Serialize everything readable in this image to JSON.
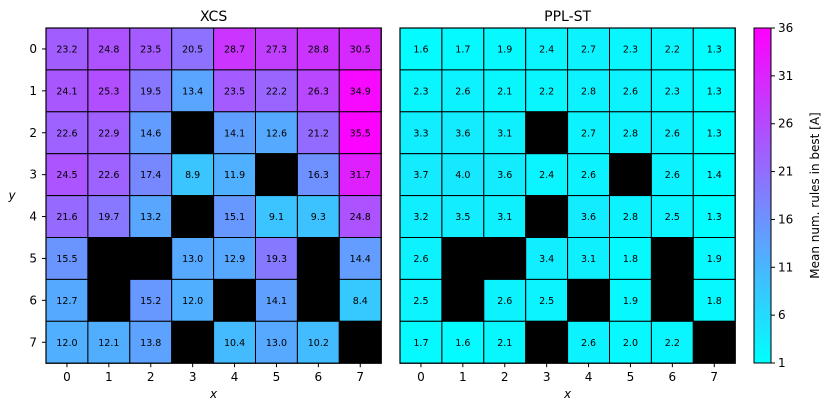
{
  "chart_data": [
    {
      "type": "heatmap",
      "title": "XCS",
      "xlabel": "x",
      "ylabel": "y",
      "x_ticks": [
        "0",
        "1",
        "2",
        "3",
        "4",
        "5",
        "6",
        "7"
      ],
      "y_ticks": [
        "0",
        "1",
        "2",
        "3",
        "4",
        "5",
        "6",
        "7"
      ],
      "blocked_color": "#000000",
      "values": [
        [
          23.2,
          24.8,
          23.5,
          20.5,
          28.7,
          27.3,
          28.8,
          30.5
        ],
        [
          24.1,
          25.3,
          19.5,
          13.4,
          23.5,
          22.2,
          26.3,
          34.9
        ],
        [
          22.6,
          22.9,
          14.6,
          null,
          14.1,
          12.6,
          21.2,
          35.5
        ],
        [
          24.5,
          22.6,
          17.4,
          8.9,
          11.9,
          null,
          16.3,
          31.7
        ],
        [
          21.6,
          19.7,
          13.2,
          null,
          15.1,
          9.1,
          9.3,
          24.8
        ],
        [
          15.5,
          null,
          null,
          13.0,
          12.9,
          19.3,
          null,
          14.4
        ],
        [
          12.7,
          null,
          15.2,
          12.0,
          null,
          14.1,
          null,
          8.4
        ],
        [
          12.0,
          12.1,
          13.8,
          null,
          10.4,
          13.0,
          10.2,
          null
        ]
      ]
    },
    {
      "type": "heatmap",
      "title": "PPL-ST",
      "xlabel": "x",
      "ylabel": "",
      "x_ticks": [
        "0",
        "1",
        "2",
        "3",
        "4",
        "5",
        "6",
        "7"
      ],
      "y_ticks": [],
      "blocked_color": "#000000",
      "values": [
        [
          1.6,
          1.7,
          1.9,
          2.4,
          2.7,
          2.3,
          2.2,
          1.3
        ],
        [
          2.3,
          2.6,
          2.1,
          2.2,
          2.8,
          2.6,
          2.3,
          1.3
        ],
        [
          3.3,
          3.6,
          3.1,
          null,
          2.7,
          2.8,
          2.6,
          1.3
        ],
        [
          3.7,
          4.0,
          3.6,
          2.4,
          2.6,
          null,
          2.6,
          1.4
        ],
        [
          3.2,
          3.5,
          3.1,
          null,
          3.6,
          2.8,
          2.5,
          1.3
        ],
        [
          2.6,
          null,
          null,
          3.4,
          3.1,
          1.8,
          null,
          1.9
        ],
        [
          2.5,
          null,
          2.6,
          2.5,
          null,
          1.9,
          null,
          1.8
        ],
        [
          1.7,
          1.6,
          2.1,
          null,
          2.6,
          2.0,
          2.2,
          null
        ]
      ]
    }
  ],
  "colorbar": {
    "label": "Mean num. rules in best [A]",
    "min": 1,
    "max": 36,
    "ticks": [
      1,
      6,
      11,
      16,
      21,
      26,
      31,
      36
    ],
    "colormap": "cool",
    "color_low": "#00ffff",
    "color_high": "#ff00ff"
  }
}
